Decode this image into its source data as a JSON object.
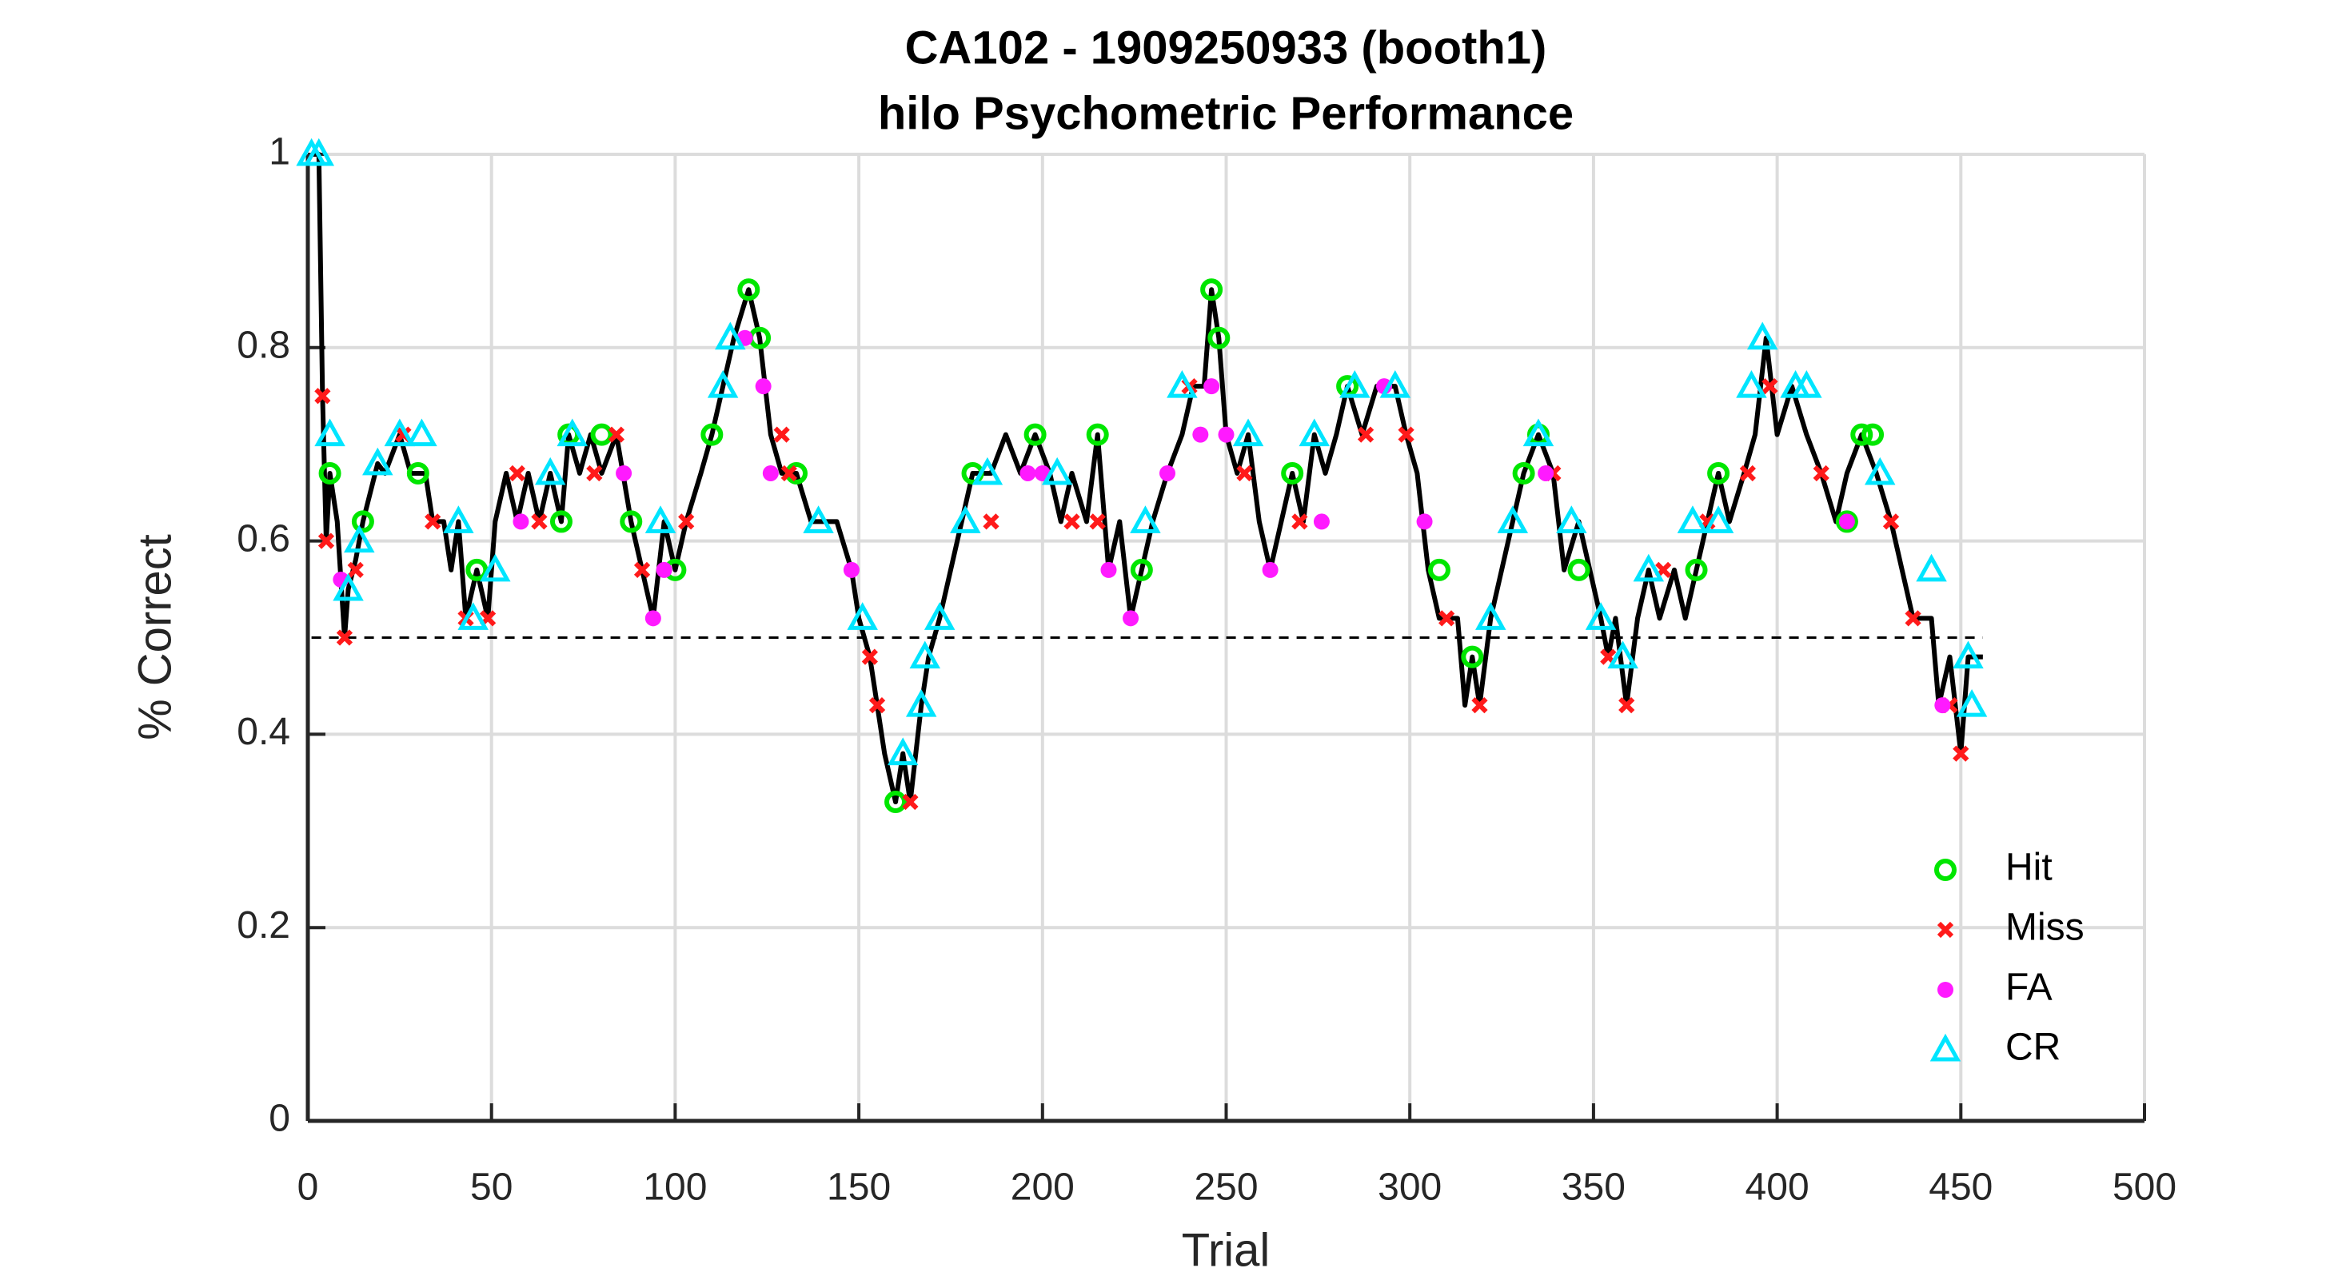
{
  "chart_data": {
    "type": "line",
    "title": [
      "CA102 - 1909250933 (booth1)",
      "hilo Psychometric Performance"
    ],
    "xlabel": "Trial",
    "ylabel": "% Correct",
    "xlim": [
      0,
      500
    ],
    "ylim": [
      0,
      1
    ],
    "xticks": [
      0,
      50,
      100,
      150,
      200,
      250,
      300,
      350,
      400,
      450,
      500
    ],
    "yticks": [
      0,
      0.2,
      0.4,
      0.6,
      0.8,
      1
    ],
    "grid": true,
    "legend": "lower right",
    "reference_line": 0.5,
    "line": {
      "color": "#000000",
      "x": [
        1,
        3,
        4,
        5,
        6,
        8,
        9,
        10,
        11,
        13,
        15,
        17,
        19,
        21,
        25,
        28,
        32,
        34,
        37,
        39,
        41,
        43,
        46,
        49,
        51,
        54,
        57,
        60,
        63,
        66,
        69,
        71,
        74,
        77,
        80,
        84,
        88,
        91,
        94,
        97,
        100,
        103,
        107,
        110,
        113,
        116,
        120,
        123,
        126,
        129,
        133,
        137,
        144,
        148,
        150,
        153,
        155,
        157,
        160,
        162,
        164,
        167,
        169,
        172,
        175,
        178,
        181,
        186,
        190,
        194,
        198,
        202,
        205,
        208,
        212,
        215,
        218,
        221,
        224,
        227,
        230,
        234,
        238,
        241,
        244,
        246,
        248,
        250,
        253,
        256,
        259,
        262,
        265,
        268,
        271,
        274,
        277,
        280,
        283,
        287,
        291,
        296,
        299,
        302,
        305,
        308,
        313,
        315,
        317,
        319,
        322,
        325,
        328,
        331,
        335,
        339,
        342,
        346,
        349,
        352,
        354,
        356,
        359,
        362,
        365,
        368,
        372,
        375,
        378,
        381,
        384,
        387,
        391,
        394,
        397,
        400,
        404,
        408,
        412,
        416,
        419,
        423,
        427,
        431,
        434,
        437,
        442,
        444,
        447,
        450,
        452,
        456
      ],
      "values": [
        1,
        1,
        0.75,
        0.6,
        0.67,
        0.62,
        0.56,
        0.5,
        0.55,
        0.58,
        0.62,
        0.65,
        0.68,
        0.67,
        0.71,
        0.67,
        0.67,
        0.62,
        0.62,
        0.57,
        0.62,
        0.52,
        0.57,
        0.52,
        0.62,
        0.67,
        0.62,
        0.67,
        0.62,
        0.67,
        0.62,
        0.71,
        0.67,
        0.71,
        0.67,
        0.71,
        0.62,
        0.57,
        0.52,
        0.62,
        0.57,
        0.62,
        0.67,
        0.71,
        0.76,
        0.81,
        0.86,
        0.81,
        0.71,
        0.67,
        0.67,
        0.62,
        0.62,
        0.57,
        0.52,
        0.48,
        0.43,
        0.38,
        0.33,
        0.38,
        0.33,
        0.43,
        0.48,
        0.52,
        0.57,
        0.62,
        0.67,
        0.67,
        0.71,
        0.67,
        0.71,
        0.67,
        0.62,
        0.67,
        0.62,
        0.71,
        0.57,
        0.62,
        0.52,
        0.57,
        0.62,
        0.67,
        0.71,
        0.76,
        0.76,
        0.86,
        0.81,
        0.71,
        0.67,
        0.71,
        0.62,
        0.57,
        0.62,
        0.67,
        0.62,
        0.71,
        0.67,
        0.71,
        0.76,
        0.71,
        0.76,
        0.76,
        0.71,
        0.67,
        0.57,
        0.52,
        0.52,
        0.43,
        0.48,
        0.43,
        0.52,
        0.57,
        0.62,
        0.67,
        0.71,
        0.67,
        0.57,
        0.62,
        0.57,
        0.52,
        0.48,
        0.52,
        0.43,
        0.52,
        0.57,
        0.52,
        0.57,
        0.52,
        0.57,
        0.62,
        0.67,
        0.62,
        0.67,
        0.71,
        0.81,
        0.71,
        0.76,
        0.71,
        0.67,
        0.62,
        0.67,
        0.71,
        0.67,
        0.62,
        0.57,
        0.52,
        0.52,
        0.43,
        0.48,
        0.38,
        0.48,
        0.48
      ]
    },
    "series": [
      {
        "name": "Hit",
        "color": "#00e600",
        "marker": "circle",
        "x": [
          6,
          15,
          30,
          46,
          69,
          71,
          80,
          88,
          100,
          110,
          120,
          123,
          133,
          160,
          181,
          198,
          215,
          227,
          246,
          248,
          268,
          283,
          308,
          317,
          331,
          335,
          346,
          378,
          384,
          419,
          423,
          426
        ],
        "values": [
          0.67,
          0.62,
          0.67,
          0.57,
          0.62,
          0.71,
          0.71,
          0.62,
          0.57,
          0.71,
          0.86,
          0.81,
          0.67,
          0.33,
          0.67,
          0.71,
          0.71,
          0.57,
          0.86,
          0.81,
          0.67,
          0.76,
          0.57,
          0.48,
          0.67,
          0.71,
          0.57,
          0.57,
          0.67,
          0.62,
          0.71,
          0.71
        ]
      },
      {
        "name": "Miss",
        "color": "#ff1a1a",
        "marker": "x",
        "x": [
          4,
          5,
          10,
          13,
          26,
          34,
          43,
          49,
          57,
          63,
          78,
          84,
          91,
          103,
          129,
          131,
          153,
          155,
          164,
          186,
          208,
          215,
          240,
          255,
          270,
          288,
          299,
          310,
          319,
          339,
          354,
          359,
          369,
          381,
          392,
          398,
          412,
          431,
          437,
          447,
          450
        ],
        "values": [
          0.75,
          0.6,
          0.5,
          0.57,
          0.71,
          0.62,
          0.52,
          0.52,
          0.67,
          0.62,
          0.67,
          0.71,
          0.57,
          0.62,
          0.71,
          0.67,
          0.48,
          0.43,
          0.33,
          0.62,
          0.62,
          0.62,
          0.76,
          0.67,
          0.62,
          0.71,
          0.71,
          0.52,
          0.43,
          0.67,
          0.48,
          0.43,
          0.57,
          0.62,
          0.67,
          0.76,
          0.67,
          0.62,
          0.52,
          0.43,
          0.38
        ]
      },
      {
        "name": "FA",
        "color": "#ff1aff",
        "marker": "dot",
        "x": [
          9,
          58,
          86,
          94,
          97,
          119,
          124,
          126,
          148,
          196,
          200,
          218,
          224,
          234,
          243,
          246,
          250,
          262,
          276,
          293,
          304,
          337,
          419,
          445
        ],
        "values": [
          0.56,
          0.62,
          0.67,
          0.52,
          0.57,
          0.81,
          0.76,
          0.67,
          0.57,
          0.67,
          0.67,
          0.57,
          0.52,
          0.67,
          0.71,
          0.76,
          0.71,
          0.57,
          0.62,
          0.76,
          0.62,
          0.67,
          0.62,
          0.43
        ]
      },
      {
        "name": "CR",
        "color": "#00e5ff",
        "marker": "triangle",
        "x": [
          1,
          3,
          6,
          11,
          14,
          19,
          25,
          31,
          41,
          45,
          51,
          66,
          72,
          96,
          113,
          115,
          139,
          151,
          162,
          167,
          168,
          172,
          179,
          185,
          204,
          228,
          238,
          256,
          274,
          285,
          296,
          322,
          328,
          335,
          344,
          352,
          358,
          365,
          377,
          384,
          393,
          396,
          405,
          408,
          428,
          442,
          452,
          453
        ],
        "values": [
          1,
          1,
          0.71,
          0.55,
          0.6,
          0.68,
          0.71,
          0.71,
          0.62,
          0.52,
          0.57,
          0.67,
          0.71,
          0.62,
          0.76,
          0.81,
          0.62,
          0.52,
          0.38,
          0.43,
          0.48,
          0.52,
          0.62,
          0.67,
          0.67,
          0.62,
          0.76,
          0.71,
          0.71,
          0.76,
          0.76,
          0.52,
          0.62,
          0.71,
          0.62,
          0.52,
          0.48,
          0.57,
          0.62,
          0.62,
          0.76,
          0.81,
          0.76,
          0.76,
          0.67,
          0.57,
          0.48,
          0.43
        ]
      }
    ]
  }
}
